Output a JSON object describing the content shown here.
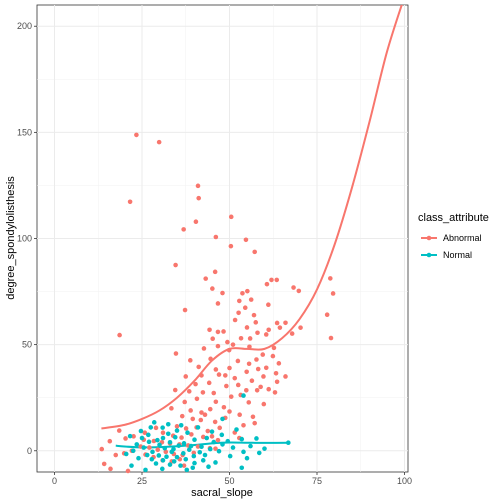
{
  "chart_data": {
    "type": "scatter",
    "xlabel": "sacral_slope",
    "ylabel": "degree_spondylolisthesis",
    "xlim": [
      -5,
      101
    ],
    "ylim": [
      -10,
      210
    ],
    "xticks": [
      0,
      25,
      50,
      75,
      100
    ],
    "yticks": [
      0,
      50,
      100,
      150,
      200
    ],
    "grid": true,
    "legend": {
      "title": "class_attribute",
      "position": "right"
    },
    "series": [
      {
        "name": "Abnormal",
        "color": "#F8766D",
        "points": [
          [
            23.4,
            148.8
          ],
          [
            29.9,
            145.4
          ],
          [
            41.0,
            124.8
          ],
          [
            21.6,
            117.3
          ],
          [
            41.2,
            119.0
          ],
          [
            40.4,
            107.9
          ],
          [
            50.5,
            110.2
          ],
          [
            36.9,
            104.3
          ],
          [
            46.1,
            100.7
          ],
          [
            54.7,
            99.4
          ],
          [
            50.4,
            96.4
          ],
          [
            57.2,
            93.7
          ],
          [
            34.6,
            87.5
          ],
          [
            45.9,
            84.3
          ],
          [
            63.5,
            80.5
          ],
          [
            62.0,
            80.5
          ],
          [
            60.7,
            78.5
          ],
          [
            68.3,
            76.9
          ],
          [
            78.8,
            81.2
          ],
          [
            43.2,
            81.1
          ],
          [
            45.1,
            76.4
          ],
          [
            55.1,
            75.2
          ],
          [
            69.8,
            75.3
          ],
          [
            53.7,
            74.2
          ],
          [
            48.0,
            74.3
          ],
          [
            56.2,
            71.2
          ],
          [
            52.8,
            70.6
          ],
          [
            46.7,
            69.4
          ],
          [
            54.5,
            67.4
          ],
          [
            61.1,
            68.8
          ],
          [
            79.6,
            74.1
          ],
          [
            37.3,
            66.3
          ],
          [
            52.6,
            65.0
          ],
          [
            57.0,
            63.9
          ],
          [
            51.6,
            61.6
          ],
          [
            57.5,
            60.5
          ],
          [
            63.6,
            60.2
          ],
          [
            66.0,
            60.3
          ],
          [
            77.9,
            64.1
          ],
          [
            18.6,
            54.5
          ],
          [
            44.3,
            57.0
          ],
          [
            46.7,
            56.0
          ],
          [
            48.3,
            56.2
          ],
          [
            55.0,
            58.1
          ],
          [
            58.0,
            55.6
          ],
          [
            61.2,
            57.0
          ],
          [
            64.4,
            58.0
          ],
          [
            70.3,
            58.0
          ],
          [
            45.2,
            52.8
          ],
          [
            49.4,
            51.2
          ],
          [
            53.3,
            53.0
          ],
          [
            55.9,
            52.9
          ],
          [
            60.5,
            54.8
          ],
          [
            67.9,
            55.2
          ],
          [
            79.0,
            53.1
          ],
          [
            42.7,
            48.2
          ],
          [
            46.7,
            49.3
          ],
          [
            49.9,
            47.4
          ],
          [
            51.0,
            50.0
          ],
          [
            55.7,
            49.0
          ],
          [
            59.5,
            45.3
          ],
          [
            62.7,
            48.5
          ],
          [
            34.7,
            45.8
          ],
          [
            44.6,
            43.3
          ],
          [
            52.4,
            42.3
          ],
          [
            57.7,
            43.0
          ],
          [
            62.4,
            44.6
          ],
          [
            38.8,
            42.6
          ],
          [
            41.2,
            39.5
          ],
          [
            46.1,
            38.3
          ],
          [
            50.0,
            39.0
          ],
          [
            54.9,
            37.2
          ],
          [
            58.2,
            38.5
          ],
          [
            60.5,
            39.1
          ],
          [
            64.1,
            41.2
          ],
          [
            37.5,
            35.0
          ],
          [
            42.0,
            35.5
          ],
          [
            47.0,
            35.9
          ],
          [
            51.5,
            34.2
          ],
          [
            56.4,
            33.0
          ],
          [
            59.7,
            35.0
          ],
          [
            63.3,
            36.5
          ],
          [
            40.3,
            31.4
          ],
          [
            44.2,
            32.0
          ],
          [
            49.1,
            30.5
          ],
          [
            52.5,
            31.0
          ],
          [
            54.8,
            28.5
          ],
          [
            58.9,
            30.1
          ],
          [
            63.6,
            32.5
          ],
          [
            34.5,
            28.6
          ],
          [
            38.5,
            28.0
          ],
          [
            42.4,
            27.5
          ],
          [
            45.5,
            27.2
          ],
          [
            50.5,
            25.5
          ],
          [
            53.2,
            26.3
          ],
          [
            57.9,
            28.5
          ],
          [
            61.2,
            29.0
          ],
          [
            37.2,
            23.0
          ],
          [
            40.7,
            24.5
          ],
          [
            46.1,
            23.1
          ],
          [
            48.4,
            20.5
          ],
          [
            55.5,
            22.8
          ],
          [
            59.8,
            22.0
          ],
          [
            33.4,
            20.0
          ],
          [
            38.9,
            19.0
          ],
          [
            42.0,
            18.0
          ],
          [
            44.5,
            19.6
          ],
          [
            50.0,
            18.5
          ],
          [
            52.9,
            17.0
          ],
          [
            56.7,
            16.0
          ],
          [
            36.5,
            16.3
          ],
          [
            39.5,
            15.0
          ],
          [
            41.8,
            14.5
          ],
          [
            45.9,
            13.6
          ],
          [
            48.8,
            15.5
          ],
          [
            54.0,
            12.0
          ],
          [
            57.2,
            13.0
          ],
          [
            35.0,
            11.5
          ],
          [
            37.6,
            10.5
          ],
          [
            40.6,
            11.0
          ],
          [
            43.8,
            9.3
          ],
          [
            47.2,
            10.8
          ],
          [
            51.5,
            8.6
          ],
          [
            31.0,
            8.5
          ],
          [
            33.9,
            7.1
          ],
          [
            36.3,
            6.2
          ],
          [
            39.1,
            7.7
          ],
          [
            42.5,
            6.5
          ],
          [
            46.7,
            5.0
          ],
          [
            52.8,
            6.0
          ],
          [
            20.3,
            5.8
          ],
          [
            22.6,
            6.8
          ],
          [
            25.5,
            5.2
          ],
          [
            28.4,
            4.6
          ],
          [
            30.7,
            4.0
          ],
          [
            33.0,
            3.5
          ],
          [
            35.7,
            3.0
          ],
          [
            38.2,
            2.5
          ],
          [
            41.0,
            2.0
          ],
          [
            44.4,
            1.2
          ],
          [
            24.6,
            2.0
          ],
          [
            27.1,
            1.5
          ],
          [
            29.5,
            0.5
          ],
          [
            31.8,
            -0.5
          ],
          [
            34.1,
            -1.5
          ],
          [
            36.6,
            -2.0
          ],
          [
            39.8,
            -1.0
          ],
          [
            22.1,
            0.0
          ],
          [
            26.0,
            -1.8
          ],
          [
            28.3,
            -3.0
          ],
          [
            30.9,
            -4.5
          ],
          [
            33.5,
            -5.0
          ],
          [
            17.5,
            -2.0
          ],
          [
            19.9,
            -1.2
          ],
          [
            13.5,
            0.8
          ],
          [
            14.2,
            -6.2
          ],
          [
            16.0,
            -8.5
          ],
          [
            21.0,
            -9.5
          ],
          [
            18.5,
            9.5
          ],
          [
            25.8,
            8.5
          ],
          [
            29.0,
            10.8
          ],
          [
            63.0,
            27.5
          ],
          [
            66.0,
            35.0
          ],
          [
            55.6,
            41.0
          ],
          [
            43.0,
            17.0
          ],
          [
            48.8,
            35.5
          ],
          [
            35.8,
            -4.0
          ],
          [
            15.8,
            4.5
          ],
          [
            46.0,
            1.0
          ],
          [
            45.0,
            6.8
          ],
          [
            37.0,
            -7.0
          ]
        ]
      },
      {
        "name": "Normal",
        "color": "#00BFC4",
        "points": [
          [
            28.5,
            13.4
          ],
          [
            30.9,
            10.9
          ],
          [
            36.2,
            12.0
          ],
          [
            24.7,
            9.3
          ],
          [
            32.5,
            8.0
          ],
          [
            26.8,
            7.5
          ],
          [
            38.0,
            8.5
          ],
          [
            21.6,
            6.9
          ],
          [
            31.0,
            6.0
          ],
          [
            34.5,
            6.4
          ],
          [
            29.4,
            5.0
          ],
          [
            40.0,
            5.2
          ],
          [
            43.5,
            6.0
          ],
          [
            27.0,
            4.2
          ],
          [
            33.0,
            4.0
          ],
          [
            37.0,
            3.5
          ],
          [
            45.5,
            4.1
          ],
          [
            49.5,
            4.5
          ],
          [
            23.5,
            3.0
          ],
          [
            30.0,
            2.8
          ],
          [
            35.5,
            2.4
          ],
          [
            39.0,
            2.2
          ],
          [
            42.0,
            1.9
          ],
          [
            48.0,
            3.0
          ],
          [
            53.5,
            5.5
          ],
          [
            57.7,
            5.8
          ],
          [
            25.5,
            1.5
          ],
          [
            31.5,
            1.2
          ],
          [
            34.0,
            0.8
          ],
          [
            38.5,
            0.5
          ],
          [
            44.5,
            0.8
          ],
          [
            51.0,
            1.5
          ],
          [
            56.0,
            2.2
          ],
          [
            60.0,
            1.0
          ],
          [
            66.8,
            3.8
          ],
          [
            22.5,
            0.0
          ],
          [
            28.0,
            -0.5
          ],
          [
            33.5,
            -0.5
          ],
          [
            36.8,
            -1.2
          ],
          [
            41.5,
            -0.7
          ],
          [
            47.0,
            -0.2
          ],
          [
            54.0,
            -0.5
          ],
          [
            58.5,
            -1.0
          ],
          [
            20.5,
            -1.5
          ],
          [
            26.5,
            -2.0
          ],
          [
            29.8,
            -2.2
          ],
          [
            32.0,
            -2.8
          ],
          [
            35.0,
            -3.0
          ],
          [
            39.8,
            -2.5
          ],
          [
            43.0,
            -2.0
          ],
          [
            50.2,
            -2.5
          ],
          [
            24.0,
            -3.5
          ],
          [
            27.8,
            -4.0
          ],
          [
            31.0,
            -4.5
          ],
          [
            34.2,
            -5.0
          ],
          [
            37.5,
            -4.0
          ],
          [
            42.5,
            -4.5
          ],
          [
            46.0,
            -5.5
          ],
          [
            29.0,
            -6.0
          ],
          [
            33.0,
            -6.5
          ],
          [
            36.0,
            -7.0
          ],
          [
            40.0,
            -5.8
          ],
          [
            44.0,
            -7.5
          ],
          [
            53.5,
            -8.0
          ],
          [
            30.8,
            -8.5
          ],
          [
            37.8,
            -9.0
          ],
          [
            22.0,
            -7.0
          ],
          [
            26.0,
            -9.0
          ],
          [
            54.0,
            26.0
          ],
          [
            48.0,
            15.0
          ],
          [
            32.5,
            12.5
          ],
          [
            41.0,
            11.0
          ],
          [
            45.0,
            9.0
          ],
          [
            52.0,
            10.0
          ],
          [
            27.5,
            11.0
          ],
          [
            35.0,
            9.5
          ],
          [
            39.5,
            -8.0
          ],
          [
            47.8,
            7.5
          ],
          [
            25.0,
            6.0
          ],
          [
            55.0,
            -3.5
          ]
        ]
      }
    ],
    "trend_lines": [
      {
        "series": "Abnormal",
        "color": "#F8766D",
        "x": [
          13.4,
          20,
          25,
          30,
          35,
          40,
          45,
          50,
          55,
          60,
          65,
          70,
          75,
          80,
          85,
          90,
          95,
          100
        ],
        "y": [
          10.5,
          12.2,
          15.0,
          19.0,
          25.0,
          33.0,
          42.5,
          48.0,
          48.0,
          48.0,
          53.0,
          62.0,
          76.0,
          97.0,
          124.0,
          155.0,
          188.0,
          214.0
        ]
      },
      {
        "series": "Normal",
        "color": "#00BFC4",
        "x": [
          17.5,
          20,
          25,
          30,
          35,
          40,
          45,
          50,
          55,
          60,
          67.4
        ],
        "y": [
          2.4,
          2.0,
          1.6,
          1.7,
          2.1,
          2.7,
          3.5,
          3.9,
          3.8,
          3.7,
          3.8
        ]
      }
    ]
  }
}
